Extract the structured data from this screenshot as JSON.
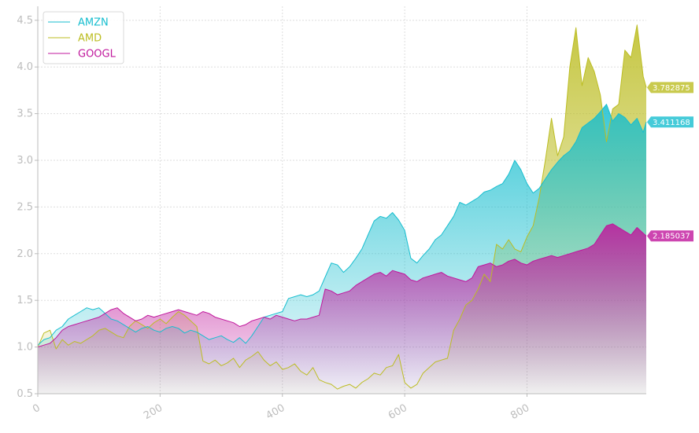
{
  "chart_data": {
    "type": "area",
    "x_ticks": [
      0,
      200,
      400,
      600,
      800
    ],
    "y_ticks": [
      0.5,
      1.0,
      1.5,
      2.0,
      2.5,
      3.0,
      3.5,
      4.0,
      4.5
    ],
    "xlim": [
      0,
      995
    ],
    "ylim": [
      0.5,
      4.65
    ],
    "grid": true,
    "legend_position": "top-left",
    "series": [
      {
        "name": "AMZN",
        "color": "#17becf",
        "last_value_label": "3.411168",
        "points": [
          [
            0,
            1.02
          ],
          [
            10,
            1.08
          ],
          [
            20,
            1.1
          ],
          [
            30,
            1.18
          ],
          [
            40,
            1.22
          ],
          [
            50,
            1.3
          ],
          [
            60,
            1.34
          ],
          [
            70,
            1.38
          ],
          [
            80,
            1.42
          ],
          [
            90,
            1.4
          ],
          [
            100,
            1.42
          ],
          [
            110,
            1.36
          ],
          [
            120,
            1.3
          ],
          [
            130,
            1.28
          ],
          [
            140,
            1.24
          ],
          [
            150,
            1.2
          ],
          [
            160,
            1.16
          ],
          [
            170,
            1.2
          ],
          [
            180,
            1.22
          ],
          [
            190,
            1.18
          ],
          [
            200,
            1.16
          ],
          [
            210,
            1.2
          ],
          [
            220,
            1.22
          ],
          [
            230,
            1.2
          ],
          [
            240,
            1.15
          ],
          [
            250,
            1.18
          ],
          [
            260,
            1.16
          ],
          [
            270,
            1.12
          ],
          [
            280,
            1.08
          ],
          [
            290,
            1.1
          ],
          [
            300,
            1.12
          ],
          [
            310,
            1.08
          ],
          [
            320,
            1.05
          ],
          [
            330,
            1.1
          ],
          [
            340,
            1.04
          ],
          [
            350,
            1.12
          ],
          [
            360,
            1.22
          ],
          [
            370,
            1.32
          ],
          [
            380,
            1.34
          ],
          [
            390,
            1.36
          ],
          [
            400,
            1.38
          ],
          [
            410,
            1.52
          ],
          [
            420,
            1.54
          ],
          [
            430,
            1.56
          ],
          [
            440,
            1.54
          ],
          [
            450,
            1.56
          ],
          [
            460,
            1.6
          ],
          [
            470,
            1.75
          ],
          [
            480,
            1.9
          ],
          [
            490,
            1.88
          ],
          [
            500,
            1.8
          ],
          [
            510,
            1.86
          ],
          [
            520,
            1.95
          ],
          [
            530,
            2.05
          ],
          [
            540,
            2.2
          ],
          [
            550,
            2.35
          ],
          [
            560,
            2.4
          ],
          [
            570,
            2.38
          ],
          [
            580,
            2.44
          ],
          [
            590,
            2.36
          ],
          [
            600,
            2.25
          ],
          [
            610,
            1.95
          ],
          [
            620,
            1.9
          ],
          [
            630,
            1.98
          ],
          [
            640,
            2.05
          ],
          [
            650,
            2.15
          ],
          [
            660,
            2.2
          ],
          [
            670,
            2.3
          ],
          [
            680,
            2.4
          ],
          [
            690,
            2.55
          ],
          [
            700,
            2.52
          ],
          [
            710,
            2.56
          ],
          [
            720,
            2.6
          ],
          [
            730,
            2.66
          ],
          [
            740,
            2.68
          ],
          [
            750,
            2.72
          ],
          [
            760,
            2.75
          ],
          [
            770,
            2.85
          ],
          [
            780,
            3.0
          ],
          [
            790,
            2.9
          ],
          [
            800,
            2.75
          ],
          [
            810,
            2.65
          ],
          [
            820,
            2.7
          ],
          [
            830,
            2.8
          ],
          [
            840,
            2.9
          ],
          [
            850,
            2.98
          ],
          [
            860,
            3.05
          ],
          [
            870,
            3.1
          ],
          [
            880,
            3.2
          ],
          [
            890,
            3.35
          ],
          [
            900,
            3.4
          ],
          [
            910,
            3.45
          ],
          [
            920,
            3.52
          ],
          [
            930,
            3.6
          ],
          [
            940,
            3.42
          ],
          [
            950,
            3.5
          ],
          [
            960,
            3.46
          ],
          [
            970,
            3.38
          ],
          [
            980,
            3.45
          ],
          [
            990,
            3.3
          ],
          [
            995,
            3.41
          ]
        ]
      },
      {
        "name": "AMD",
        "color": "#bcbd22",
        "last_value_label": "3.782875",
        "points": [
          [
            0,
            1.0
          ],
          [
            10,
            1.15
          ],
          [
            20,
            1.18
          ],
          [
            30,
            0.98
          ],
          [
            40,
            1.08
          ],
          [
            50,
            1.02
          ],
          [
            60,
            1.06
          ],
          [
            70,
            1.04
          ],
          [
            80,
            1.08
          ],
          [
            90,
            1.12
          ],
          [
            100,
            1.18
          ],
          [
            110,
            1.2
          ],
          [
            120,
            1.16
          ],
          [
            130,
            1.12
          ],
          [
            140,
            1.1
          ],
          [
            150,
            1.22
          ],
          [
            160,
            1.28
          ],
          [
            170,
            1.24
          ],
          [
            180,
            1.2
          ],
          [
            190,
            1.26
          ],
          [
            200,
            1.3
          ],
          [
            210,
            1.25
          ],
          [
            220,
            1.32
          ],
          [
            230,
            1.38
          ],
          [
            240,
            1.34
          ],
          [
            250,
            1.28
          ],
          [
            260,
            1.22
          ],
          [
            270,
            0.85
          ],
          [
            280,
            0.82
          ],
          [
            290,
            0.86
          ],
          [
            300,
            0.8
          ],
          [
            310,
            0.83
          ],
          [
            320,
            0.88
          ],
          [
            330,
            0.78
          ],
          [
            340,
            0.86
          ],
          [
            350,
            0.9
          ],
          [
            360,
            0.95
          ],
          [
            370,
            0.86
          ],
          [
            380,
            0.8
          ],
          [
            390,
            0.84
          ],
          [
            400,
            0.76
          ],
          [
            410,
            0.78
          ],
          [
            420,
            0.82
          ],
          [
            430,
            0.74
          ],
          [
            440,
            0.7
          ],
          [
            450,
            0.78
          ],
          [
            460,
            0.65
          ],
          [
            470,
            0.62
          ],
          [
            480,
            0.6
          ],
          [
            490,
            0.55
          ],
          [
            500,
            0.58
          ],
          [
            510,
            0.6
          ],
          [
            520,
            0.56
          ],
          [
            530,
            0.62
          ],
          [
            540,
            0.66
          ],
          [
            550,
            0.72
          ],
          [
            560,
            0.7
          ],
          [
            570,
            0.78
          ],
          [
            580,
            0.8
          ],
          [
            590,
            0.92
          ],
          [
            600,
            0.62
          ],
          [
            610,
            0.56
          ],
          [
            620,
            0.6
          ],
          [
            630,
            0.72
          ],
          [
            640,
            0.78
          ],
          [
            650,
            0.84
          ],
          [
            660,
            0.86
          ],
          [
            670,
            0.88
          ],
          [
            680,
            1.18
          ],
          [
            690,
            1.3
          ],
          [
            700,
            1.45
          ],
          [
            710,
            1.5
          ],
          [
            720,
            1.62
          ],
          [
            730,
            1.78
          ],
          [
            740,
            1.7
          ],
          [
            750,
            2.1
          ],
          [
            760,
            2.05
          ],
          [
            770,
            2.15
          ],
          [
            780,
            2.05
          ],
          [
            790,
            2.02
          ],
          [
            800,
            2.18
          ],
          [
            810,
            2.3
          ],
          [
            820,
            2.6
          ],
          [
            830,
            3.0
          ],
          [
            840,
            3.45
          ],
          [
            850,
            3.05
          ],
          [
            860,
            3.25
          ],
          [
            870,
            4.0
          ],
          [
            880,
            4.42
          ],
          [
            890,
            3.8
          ],
          [
            900,
            4.1
          ],
          [
            910,
            3.95
          ],
          [
            920,
            3.7
          ],
          [
            930,
            3.2
          ],
          [
            940,
            3.55
          ],
          [
            950,
            3.6
          ],
          [
            960,
            4.18
          ],
          [
            970,
            4.1
          ],
          [
            980,
            4.45
          ],
          [
            990,
            3.9
          ],
          [
            995,
            3.78
          ]
        ]
      },
      {
        "name": "GOOGL",
        "color": "#c0179c",
        "last_value_label": "2.185037",
        "points": [
          [
            0,
            1.0
          ],
          [
            10,
            1.02
          ],
          [
            20,
            1.04
          ],
          [
            30,
            1.1
          ],
          [
            40,
            1.18
          ],
          [
            50,
            1.22
          ],
          [
            60,
            1.24
          ],
          [
            70,
            1.26
          ],
          [
            80,
            1.28
          ],
          [
            90,
            1.3
          ],
          [
            100,
            1.32
          ],
          [
            110,
            1.36
          ],
          [
            120,
            1.4
          ],
          [
            130,
            1.42
          ],
          [
            140,
            1.36
          ],
          [
            150,
            1.32
          ],
          [
            160,
            1.28
          ],
          [
            170,
            1.3
          ],
          [
            180,
            1.34
          ],
          [
            190,
            1.32
          ],
          [
            200,
            1.34
          ],
          [
            210,
            1.36
          ],
          [
            220,
            1.38
          ],
          [
            230,
            1.4
          ],
          [
            240,
            1.38
          ],
          [
            250,
            1.36
          ],
          [
            260,
            1.34
          ],
          [
            270,
            1.38
          ],
          [
            280,
            1.36
          ],
          [
            290,
            1.32
          ],
          [
            300,
            1.3
          ],
          [
            310,
            1.28
          ],
          [
            320,
            1.26
          ],
          [
            330,
            1.22
          ],
          [
            340,
            1.24
          ],
          [
            350,
            1.28
          ],
          [
            360,
            1.3
          ],
          [
            370,
            1.32
          ],
          [
            380,
            1.3
          ],
          [
            390,
            1.34
          ],
          [
            400,
            1.32
          ],
          [
            410,
            1.3
          ],
          [
            420,
            1.28
          ],
          [
            430,
            1.3
          ],
          [
            440,
            1.3
          ],
          [
            450,
            1.32
          ],
          [
            460,
            1.34
          ],
          [
            470,
            1.62
          ],
          [
            480,
            1.6
          ],
          [
            490,
            1.56
          ],
          [
            500,
            1.58
          ],
          [
            510,
            1.6
          ],
          [
            520,
            1.66
          ],
          [
            530,
            1.7
          ],
          [
            540,
            1.74
          ],
          [
            550,
            1.78
          ],
          [
            560,
            1.8
          ],
          [
            570,
            1.76
          ],
          [
            580,
            1.82
          ],
          [
            590,
            1.8
          ],
          [
            600,
            1.78
          ],
          [
            610,
            1.72
          ],
          [
            620,
            1.7
          ],
          [
            630,
            1.74
          ],
          [
            640,
            1.76
          ],
          [
            650,
            1.78
          ],
          [
            660,
            1.8
          ],
          [
            670,
            1.76
          ],
          [
            680,
            1.74
          ],
          [
            690,
            1.72
          ],
          [
            700,
            1.7
          ],
          [
            710,
            1.74
          ],
          [
            720,
            1.86
          ],
          [
            730,
            1.88
          ],
          [
            740,
            1.9
          ],
          [
            750,
            1.86
          ],
          [
            760,
            1.88
          ],
          [
            770,
            1.92
          ],
          [
            780,
            1.94
          ],
          [
            790,
            1.9
          ],
          [
            800,
            1.88
          ],
          [
            810,
            1.92
          ],
          [
            820,
            1.94
          ],
          [
            830,
            1.96
          ],
          [
            840,
            1.98
          ],
          [
            850,
            1.96
          ],
          [
            860,
            1.98
          ],
          [
            870,
            2.0
          ],
          [
            880,
            2.02
          ],
          [
            890,
            2.04
          ],
          [
            900,
            2.06
          ],
          [
            910,
            2.1
          ],
          [
            920,
            2.2
          ],
          [
            930,
            2.3
          ],
          [
            940,
            2.32
          ],
          [
            950,
            2.28
          ],
          [
            960,
            2.24
          ],
          [
            970,
            2.2
          ],
          [
            980,
            2.28
          ],
          [
            990,
            2.22
          ],
          [
            995,
            2.19
          ]
        ]
      }
    ]
  },
  "background": "#ffffff",
  "grid_color": "#dddddd",
  "tick_color": "#bdbdbd"
}
